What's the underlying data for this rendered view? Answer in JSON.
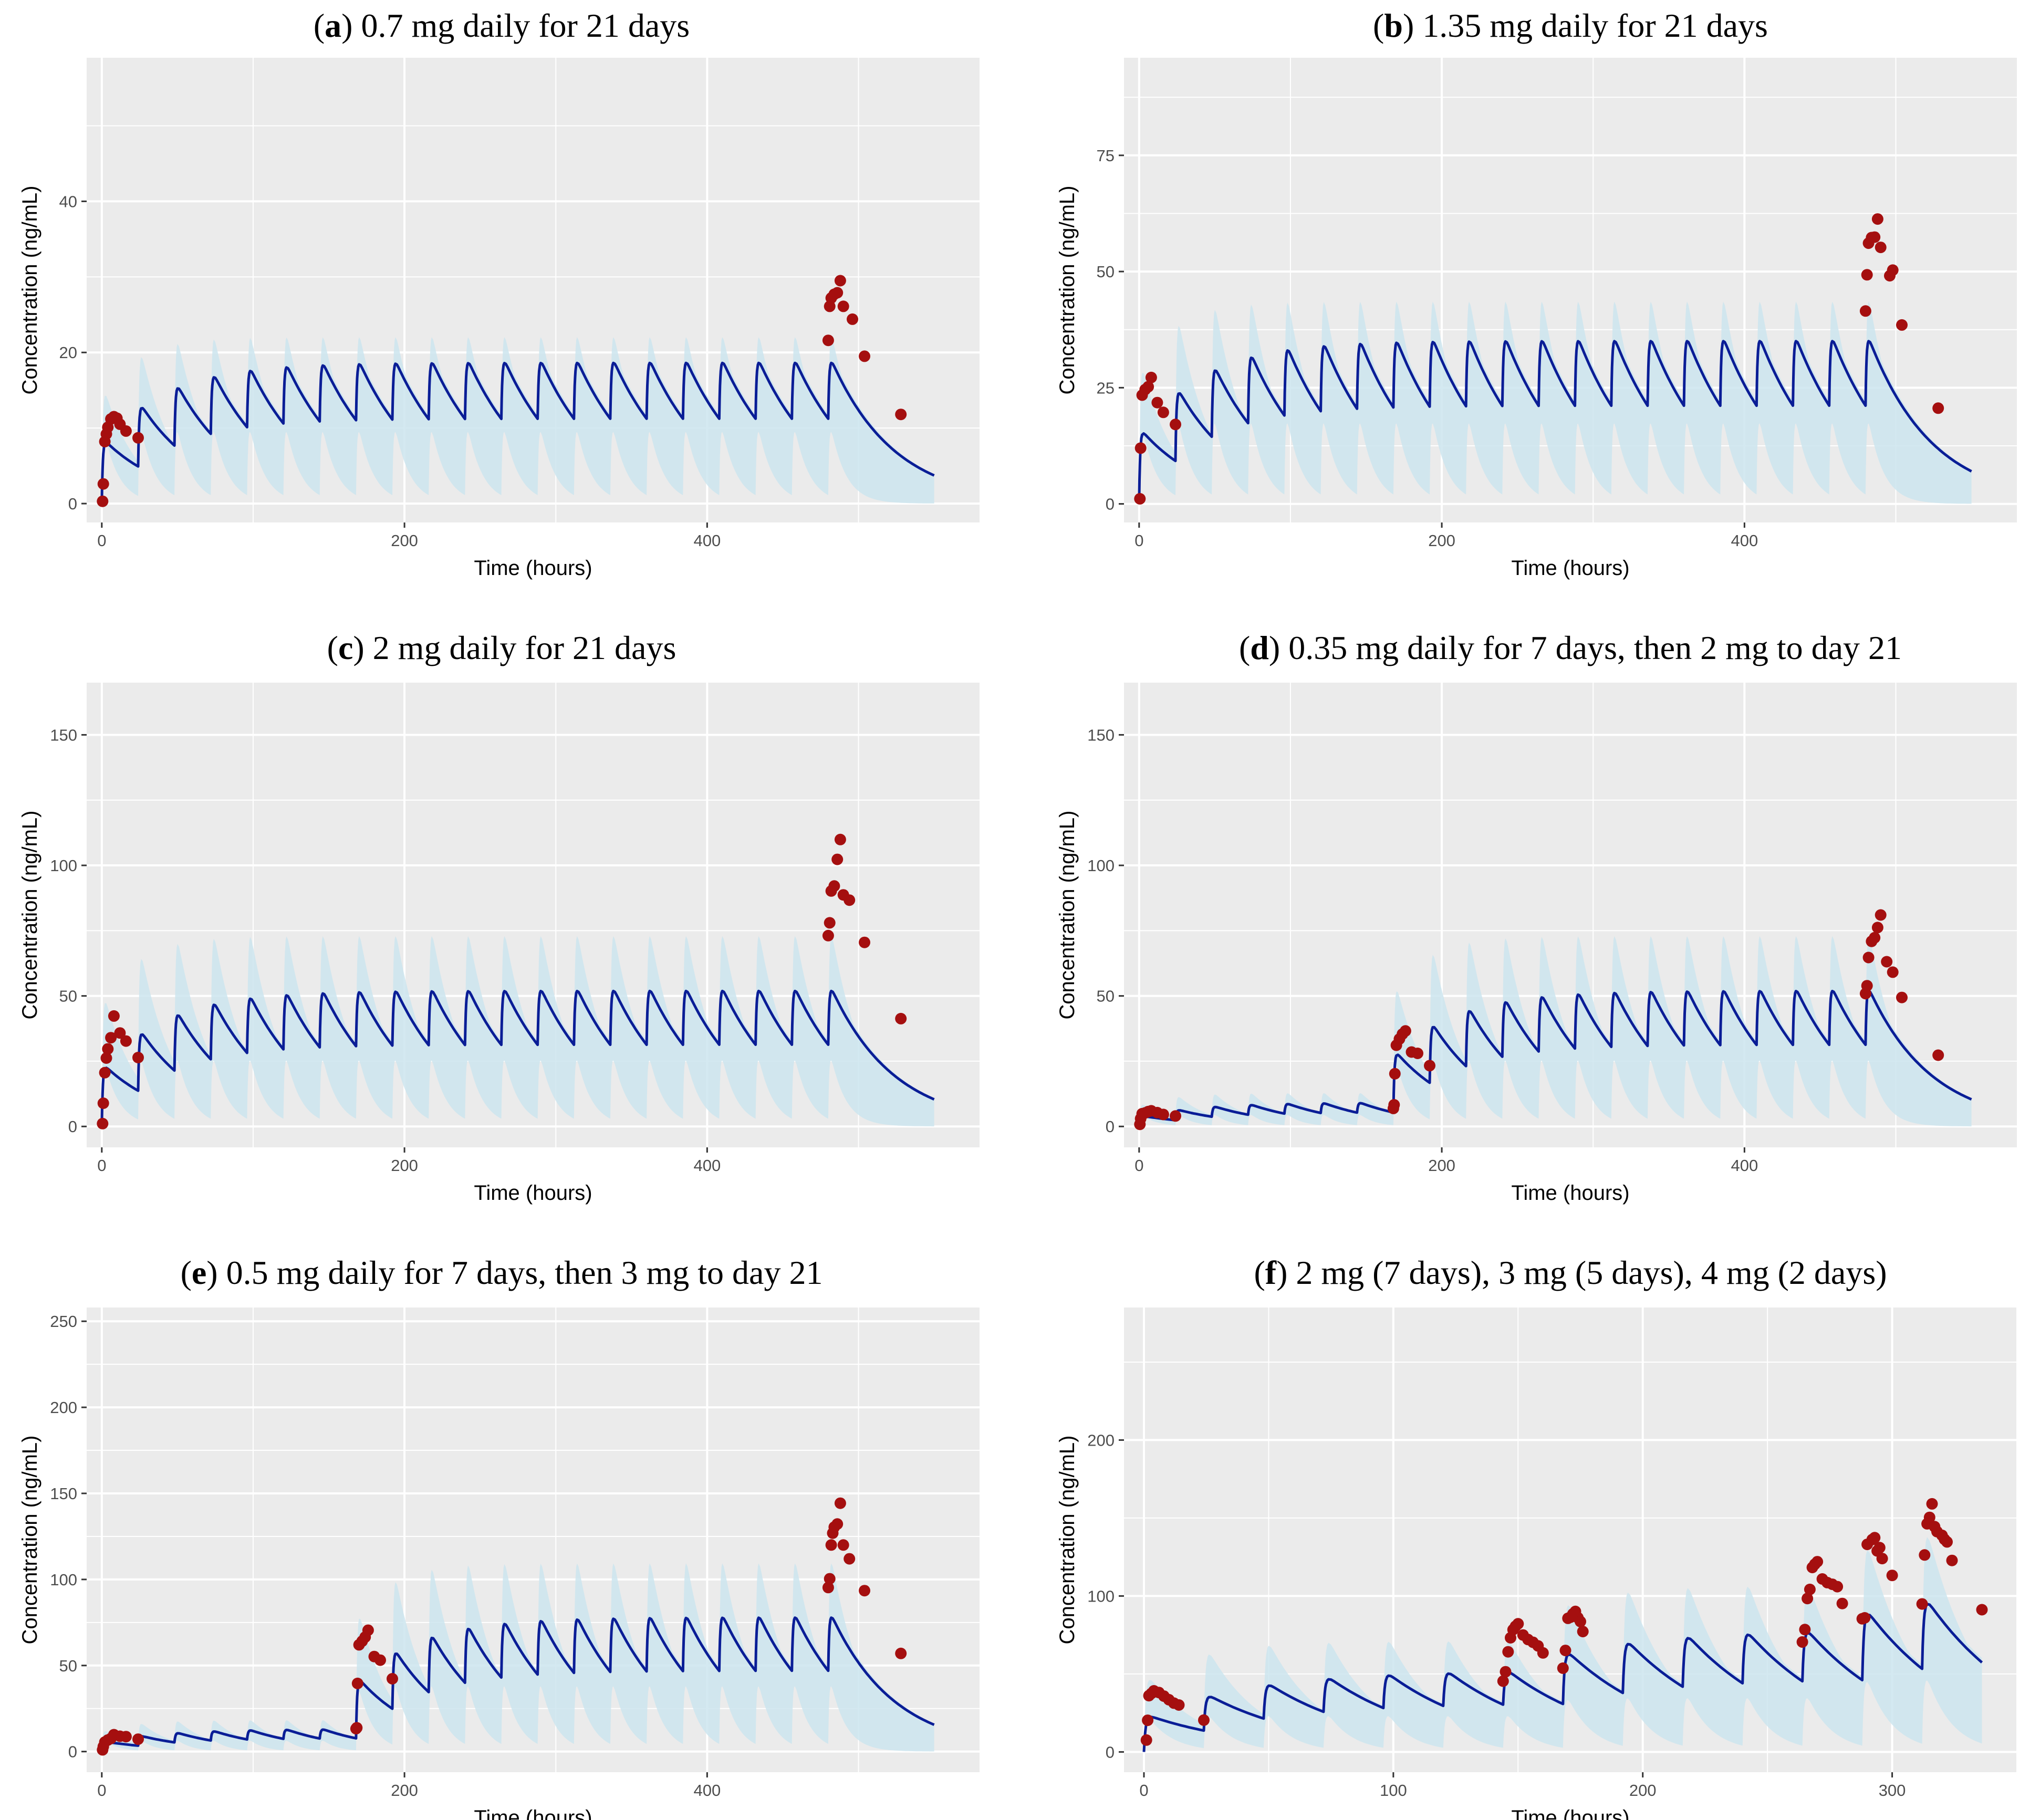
{
  "colors": {
    "panel_bg": "#ebebeb",
    "grid": "#ffffff",
    "band": "#cde5ee",
    "line": "#0a1d96",
    "points": "#a50f0f",
    "tick_text": "#4d4d4d"
  },
  "chart_data": [
    {
      "type": "line",
      "title_letter": "a",
      "title_rest": " 0.7 mg daily for 21 days",
      "xlabel": "Time (hours)",
      "ylabel": "Concentration (ng/mL)",
      "xlim": [
        -10,
        580
      ],
      "ylim": [
        -2.5,
        59
      ],
      "xticks": [
        0,
        200,
        400
      ],
      "yticks": [
        0,
        20,
        40
      ],
      "dosing": [
        {
          "start": 0,
          "end": 480,
          "amount": 0.7
        }
      ],
      "tmax": 550,
      "model": {
        "ka": 1.5,
        "k": 0.024,
        "pred_scale": 12.3,
        "band_low_scale": 0.69,
        "band_high_scale": 1.6,
        "band_low_decay": 0.1,
        "band_high_decay": 0.045
      },
      "observed": [
        [
          0.5,
          0.3
        ],
        [
          1,
          2.6
        ],
        [
          2,
          8.2
        ],
        [
          3,
          9.2
        ],
        [
          4,
          10.1
        ],
        [
          6,
          11.2
        ],
        [
          8,
          11.5
        ],
        [
          10,
          11.3
        ],
        [
          12,
          10.5
        ],
        [
          16,
          9.6
        ],
        [
          24,
          8.7
        ],
        [
          480,
          21.6
        ],
        [
          481,
          26.1
        ],
        [
          482,
          27.2
        ],
        [
          484,
          27.7
        ],
        [
          486,
          27.9
        ],
        [
          488,
          29.5
        ],
        [
          490,
          26.1
        ],
        [
          496,
          24.4
        ],
        [
          504,
          19.5
        ],
        [
          528,
          11.8
        ]
      ]
    },
    {
      "type": "line",
      "title_letter": "b",
      "title_rest": " 1.35 mg daily for 21 days",
      "xlabel": "Time (hours)",
      "ylabel": "Concentration (ng/mL)",
      "xlim": [
        -10,
        580
      ],
      "ylim": [
        -4,
        96
      ],
      "xticks": [
        0,
        200,
        400
      ],
      "yticks": [
        0,
        25,
        50,
        75
      ],
      "dosing": [
        {
          "start": 0,
          "end": 480,
          "amount": 1.35
        }
      ],
      "tmax": 550,
      "model": {
        "ka": 1.5,
        "k": 0.024,
        "pred_scale": 12.0,
        "band_low_scale": 0.67,
        "band_high_scale": 1.68,
        "band_low_decay": 0.1,
        "band_high_decay": 0.045
      },
      "observed": [
        [
          0.5,
          1.1
        ],
        [
          1,
          12.0
        ],
        [
          2,
          23.4
        ],
        [
          4,
          24.6
        ],
        [
          6,
          25.2
        ],
        [
          8,
          27.2
        ],
        [
          12,
          21.8
        ],
        [
          16,
          19.7
        ],
        [
          24,
          17.1
        ],
        [
          480,
          41.5
        ],
        [
          481,
          49.3
        ],
        [
          482,
          56.1
        ],
        [
          484,
          57.3
        ],
        [
          486,
          57.4
        ],
        [
          488,
          61.3
        ],
        [
          490,
          55.2
        ],
        [
          496,
          49.1
        ],
        [
          498,
          50.3
        ],
        [
          504,
          38.5
        ],
        [
          528,
          20.6
        ]
      ]
    },
    {
      "type": "line",
      "title_letter": "c",
      "title_rest": " 2 mg daily for 21 days",
      "xlabel": "Time (hours)",
      "ylabel": "Concentration (ng/mL)",
      "xlim": [
        -10,
        580
      ],
      "ylim": [
        -8,
        170
      ],
      "xticks": [
        0,
        200,
        400
      ],
      "yticks": [
        0,
        50,
        100,
        150
      ],
      "dosing": [
        {
          "start": 0,
          "end": 480,
          "amount": 2
        }
      ],
      "tmax": 550,
      "model": {
        "ka": 1.5,
        "k": 0.024,
        "pred_scale": 12.0,
        "band_low_scale": 0.66,
        "band_high_scale": 1.9,
        "band_low_decay": 0.1,
        "band_high_decay": 0.045
      },
      "observed": [
        [
          0.5,
          1.1
        ],
        [
          1,
          8.9
        ],
        [
          2,
          20.6
        ],
        [
          3,
          26.2
        ],
        [
          4,
          29.7
        ],
        [
          6,
          34.0
        ],
        [
          8,
          42.3
        ],
        [
          12,
          35.8
        ],
        [
          16,
          32.7
        ],
        [
          24,
          26.4
        ],
        [
          480,
          73.1
        ],
        [
          481,
          78.0
        ],
        [
          482,
          90.2
        ],
        [
          484,
          92.1
        ],
        [
          486,
          102.3
        ],
        [
          488,
          109.9
        ],
        [
          490,
          88.7
        ],
        [
          494,
          86.7
        ],
        [
          504,
          70.5
        ],
        [
          528,
          41.3
        ]
      ]
    },
    {
      "type": "line",
      "title_letter": "d",
      "title_rest": " 0.35 mg daily for 7 days, then 2 mg to day 21",
      "xlabel": "Time (hours)",
      "ylabel": "Concentration (ng/mL)",
      "xlim": [
        -10,
        580
      ],
      "ylim": [
        -8,
        170
      ],
      "xticks": [
        0,
        200,
        400
      ],
      "yticks": [
        0,
        50,
        100,
        150
      ],
      "dosing": [
        {
          "start": 0,
          "end": 144,
          "amount": 0.35
        },
        {
          "start": 168,
          "end": 480,
          "amount": 2
        }
      ],
      "tmax": 550,
      "model": {
        "ka": 1.5,
        "k": 0.024,
        "pred_scale": 12.0,
        "band_low_scale": 0.66,
        "band_high_scale": 1.9,
        "band_low_decay": 0.1,
        "band_high_decay": 0.045
      },
      "observed": [
        [
          0.5,
          0.8
        ],
        [
          1,
          3.0
        ],
        [
          2,
          4.9
        ],
        [
          4,
          5.2
        ],
        [
          6,
          5.7
        ],
        [
          8,
          6.0
        ],
        [
          12,
          5.3
        ],
        [
          16,
          4.6
        ],
        [
          24,
          4.0
        ],
        [
          168,
          6.9
        ],
        [
          168.5,
          8.3
        ],
        [
          169,
          20.2
        ],
        [
          170,
          31.1
        ],
        [
          172,
          33.5
        ],
        [
          174,
          35.4
        ],
        [
          176,
          36.6
        ],
        [
          180,
          28.5
        ],
        [
          184,
          28.0
        ],
        [
          192,
          23.3
        ],
        [
          480,
          50.9
        ],
        [
          481,
          53.9
        ],
        [
          482,
          64.7
        ],
        [
          484,
          70.9
        ],
        [
          486,
          72.3
        ],
        [
          488,
          76.2
        ],
        [
          490,
          81.0
        ],
        [
          494,
          63.1
        ],
        [
          498,
          59.1
        ],
        [
          504,
          49.4
        ],
        [
          528,
          27.3
        ]
      ]
    },
    {
      "type": "line",
      "title_letter": "e",
      "title_rest": " 0.5 mg daily for 7 days, then 3 mg to day 21",
      "xlabel": "Time (hours)",
      "ylabel": "Concentration (ng/mL)",
      "xlim": [
        -10,
        580
      ],
      "ylim": [
        -12,
        258
      ],
      "xticks": [
        0,
        200,
        400
      ],
      "yticks": [
        0,
        50,
        100,
        150,
        200,
        250
      ],
      "dosing": [
        {
          "start": 0,
          "end": 144,
          "amount": 0.5
        },
        {
          "start": 168,
          "end": 480,
          "amount": 3
        }
      ],
      "tmax": 550,
      "model": {
        "ka": 1.5,
        "k": 0.024,
        "pred_scale": 12.0,
        "band_low_scale": 0.66,
        "band_high_scale": 1.9,
        "band_low_decay": 0.1,
        "band_high_decay": 0.045
      },
      "observed": [
        [
          0.5,
          1.0
        ],
        [
          1,
          2.9
        ],
        [
          2,
          5.5
        ],
        [
          4,
          6.7
        ],
        [
          6,
          7.6
        ],
        [
          8,
          9.8
        ],
        [
          12,
          8.9
        ],
        [
          16,
          8.7
        ],
        [
          24,
          7.2
        ],
        [
          168,
          13.3
        ],
        [
          168.5,
          13.8
        ],
        [
          169,
          39.6
        ],
        [
          170,
          62.0
        ],
        [
          172,
          64.1
        ],
        [
          174,
          66.5
        ],
        [
          176,
          70.5
        ],
        [
          180,
          55.2
        ],
        [
          184,
          53.1
        ],
        [
          192,
          42.3
        ],
        [
          480,
          95.3
        ],
        [
          481,
          100.4
        ],
        [
          482,
          120.0
        ],
        [
          483,
          126.9
        ],
        [
          484,
          130.4
        ],
        [
          486,
          132.2
        ],
        [
          488,
          144.3
        ],
        [
          490,
          120.0
        ],
        [
          494,
          112.0
        ],
        [
          504,
          93.5
        ],
        [
          528,
          57.0
        ]
      ]
    },
    {
      "type": "line",
      "title_letter": "f",
      "title_rest": " 2 mg (7 days), 3 mg (5 days), 4 mg (2 days)",
      "xlabel": "Time (hours)",
      "ylabel": "Concentration (ng/mL)",
      "xlim": [
        -8,
        350
      ],
      "ylim": [
        -13,
        285
      ],
      "xticks": [
        0,
        100,
        200,
        300
      ],
      "yticks": [
        0,
        100,
        200
      ],
      "dosing": [
        {
          "start": 0,
          "end": 144,
          "amount": 2
        },
        {
          "start": 168,
          "end": 264,
          "amount": 3
        },
        {
          "start": 288,
          "end": 312,
          "amount": 4
        }
      ],
      "tmax": 336,
      "model": {
        "ka": 1.5,
        "k": 0.024,
        "pred_scale": 12.0,
        "band_low_scale": 0.6,
        "band_high_scale": 1.85,
        "band_low_decay": 0.1,
        "band_high_decay": 0.045
      },
      "observed": [
        [
          1,
          7.6
        ],
        [
          1.5,
          20.3
        ],
        [
          2,
          36.1
        ],
        [
          3,
          37.5
        ],
        [
          4,
          39.2
        ],
        [
          6,
          38.1
        ],
        [
          8,
          35.8
        ],
        [
          10,
          33.5
        ],
        [
          12,
          31.3
        ],
        [
          14,
          30.1
        ],
        [
          24,
          20.4
        ],
        [
          144,
          45.4
        ],
        [
          145,
          51.4
        ],
        [
          146,
          64.2
        ],
        [
          147,
          73.2
        ],
        [
          148,
          78.4
        ],
        [
          149,
          80.6
        ],
        [
          150,
          82.2
        ],
        [
          152,
          75.0
        ],
        [
          154,
          72.1
        ],
        [
          156,
          70.3
        ],
        [
          158,
          68.0
        ],
        [
          160,
          63.5
        ],
        [
          168,
          53.7
        ],
        [
          169,
          65.1
        ],
        [
          170,
          85.7
        ],
        [
          171,
          86.4
        ],
        [
          172,
          88.5
        ],
        [
          173,
          90.1
        ],
        [
          174,
          86.1
        ],
        [
          175,
          83.6
        ],
        [
          176,
          77.2
        ],
        [
          264,
          70.5
        ],
        [
          265,
          78.5
        ],
        [
          266,
          98.4
        ],
        [
          267,
          104.2
        ],
        [
          268,
          118.3
        ],
        [
          269,
          120.4
        ],
        [
          270,
          122.0
        ],
        [
          272,
          110.9
        ],
        [
          274,
          108.6
        ],
        [
          276,
          107.5
        ],
        [
          278,
          106.0
        ],
        [
          280,
          95.2
        ],
        [
          288,
          85.4
        ],
        [
          289,
          86.0
        ],
        [
          290,
          133.1
        ],
        [
          292,
          136.2
        ],
        [
          293,
          137.4
        ],
        [
          294,
          128.9
        ],
        [
          295,
          131.0
        ],
        [
          296,
          124.0
        ],
        [
          300,
          113.2
        ],
        [
          312,
          94.9
        ],
        [
          313,
          126.3
        ],
        [
          314,
          146.3
        ],
        [
          315,
          150.4
        ],
        [
          316,
          159.1
        ],
        [
          317,
          144.5
        ],
        [
          318,
          141.3
        ],
        [
          320,
          138.9
        ],
        [
          321,
          136.3
        ],
        [
          322,
          134.7
        ],
        [
          324,
          122.8
        ],
        [
          336,
          91.2
        ]
      ]
    }
  ]
}
